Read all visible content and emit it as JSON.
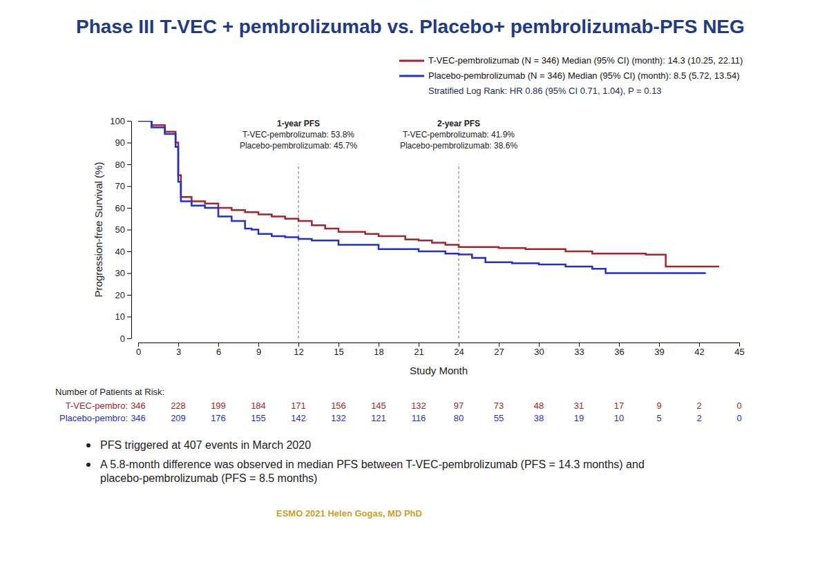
{
  "chart_data": {
    "type": "line",
    "title": "Phase III T-VEC + pembrolizumab vs. Placebo+ pembrolizumab-PFS NEG",
    "x_label": "Study Month",
    "y_label": "Progression-free Survival (%)",
    "xlim": [
      0,
      45
    ],
    "xticks": [
      0,
      3,
      6,
      9,
      12,
      15,
      18,
      21,
      24,
      27,
      30,
      33,
      36,
      39,
      42,
      45
    ],
    "ylim": [
      0,
      100
    ],
    "yticks": [
      0,
      10,
      20,
      30,
      40,
      50,
      60,
      70,
      80,
      90,
      100
    ],
    "grid": false,
    "legend": "top-right",
    "series": [
      {
        "name": "T-VEC-pembrolizumab (N = 346)  Median (95% CI) (month): 14.3 (10.25, 22.11)",
        "color": "#a8232a",
        "line_style": "step",
        "x": [
          0,
          1,
          2,
          2.8,
          3.0,
          3.2,
          4,
          5,
          6,
          7,
          8,
          9,
          10,
          11,
          12,
          13,
          14,
          15,
          17,
          18,
          20,
          21,
          22,
          23,
          24,
          25,
          27,
          29,
          32,
          34,
          38,
          39.5,
          43.5
        ],
        "values": [
          100,
          98,
          95,
          90,
          75,
          65,
          63,
          62,
          60,
          59,
          58,
          57,
          56,
          55,
          54,
          52,
          50.5,
          49,
          48,
          47,
          45.5,
          45,
          44,
          43,
          42,
          42,
          41.5,
          41,
          40,
          39,
          38.5,
          33,
          33
        ]
      },
      {
        "name": "Placebo-pembrolizumab (N = 346)  Median (95% CI) (month): 8.5 (5.72, 13.54)",
        "color": "#1f2fd0",
        "line_style": "step",
        "x": [
          0,
          1,
          2,
          2.8,
          3.0,
          3.2,
          4,
          5,
          6,
          7,
          8,
          8.5,
          9,
          10,
          11,
          12,
          13,
          15,
          18,
          21,
          23,
          24,
          25,
          26,
          28,
          30,
          32,
          34,
          35,
          42.5
        ],
        "values": [
          100,
          97,
          94,
          88,
          72,
          63,
          61,
          60,
          56,
          54,
          50.5,
          50,
          48,
          47,
          46.5,
          45.7,
          45,
          43,
          41,
          40,
          39,
          38.6,
          37,
          35,
          34.5,
          34,
          33,
          32,
          30,
          30
        ]
      }
    ],
    "stat_text": "Stratified Log Rank: HR 0.86 (95% CI 0.71, 1.04), P = 0.13",
    "reference_lines": [
      {
        "x": 12,
        "texts": [
          "1-year PFS",
          "T-VEC-pembrolizumab: 53.8%",
          "Placebo-pembrolizumab: 45.7%"
        ]
      },
      {
        "x": 24,
        "texts": [
          "2-year PFS",
          "T-VEC-pembrolizumab: 41.9%",
          "Placebo-pembrolizumab: 38.6%"
        ]
      }
    ],
    "at_risk": {
      "title": "Number of Patients at Risk:",
      "rows": [
        {
          "label": "T-VEC-pembro:",
          "color": "#a8232a",
          "values": [
            346,
            228,
            199,
            184,
            171,
            156,
            145,
            132,
            97,
            73,
            48,
            31,
            17,
            9,
            2,
            0
          ]
        },
        {
          "label": "Placebo-pembro:",
          "color": "#1f2fd0",
          "values": [
            346,
            209,
            176,
            155,
            142,
            132,
            121,
            116,
            80,
            55,
            38,
            19,
            10,
            5,
            2,
            0
          ]
        }
      ]
    },
    "notes": [
      "PFS triggered at 407 events in March 2020",
      "A 5.8-month difference was observed in median PFS between T-VEC-pembrolizumab (PFS = 14.3 months) and placebo-pembrolizumab (PFS = 8.5 months)"
    ],
    "footer": "ESMO 2021 Helen Gogas, MD PhD"
  }
}
